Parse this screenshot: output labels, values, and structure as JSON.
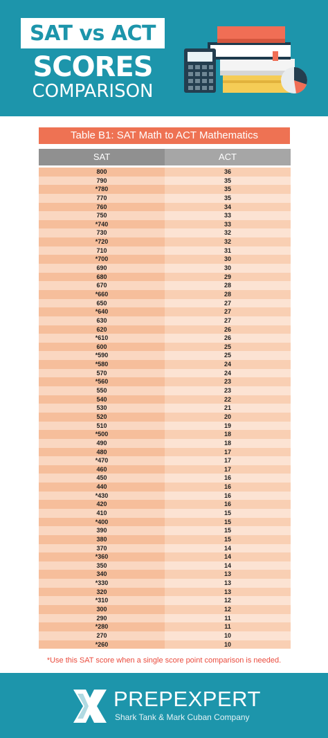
{
  "header": {
    "title_line1": "SAT vs ACT",
    "title_line2": "SCORES",
    "title_line3": "COMPARISON",
    "illustration_icons": [
      "books-stack-icon",
      "calculator-icon",
      "pie-chart-icon"
    ]
  },
  "table": {
    "caption": "Table B1: SAT Math to ACT Mathematics",
    "columns": [
      "SAT",
      "ACT"
    ],
    "rows": [
      [
        "800",
        "36"
      ],
      [
        "790",
        "35"
      ],
      [
        "*780",
        "35"
      ],
      [
        "770",
        "35"
      ],
      [
        "760",
        "34"
      ],
      [
        "750",
        "33"
      ],
      [
        "*740",
        "33"
      ],
      [
        "730",
        "32"
      ],
      [
        "*720",
        "32"
      ],
      [
        "710",
        "31"
      ],
      [
        "*700",
        "30"
      ],
      [
        "690",
        "30"
      ],
      [
        "680",
        "29"
      ],
      [
        "670",
        "28"
      ],
      [
        "*660",
        "28"
      ],
      [
        "650",
        "27"
      ],
      [
        "*640",
        "27"
      ],
      [
        "630",
        "27"
      ],
      [
        "620",
        "26"
      ],
      [
        "*610",
        "26"
      ],
      [
        "600",
        "25"
      ],
      [
        "*590",
        "25"
      ],
      [
        "*580",
        "24"
      ],
      [
        "570",
        "24"
      ],
      [
        "*560",
        "23"
      ],
      [
        "550",
        "23"
      ],
      [
        "540",
        "22"
      ],
      [
        "530",
        "21"
      ],
      [
        "520",
        "20"
      ],
      [
        "510",
        "19"
      ],
      [
        "*500",
        "18"
      ],
      [
        "490",
        "18"
      ],
      [
        "480",
        "17"
      ],
      [
        "*470",
        "17"
      ],
      [
        "460",
        "17"
      ],
      [
        "450",
        "16"
      ],
      [
        "440",
        "16"
      ],
      [
        "*430",
        "16"
      ],
      [
        "420",
        "16"
      ],
      [
        "410",
        "15"
      ],
      [
        "*400",
        "15"
      ],
      [
        "390",
        "15"
      ],
      [
        "380",
        "15"
      ],
      [
        "370",
        "14"
      ],
      [
        "*360",
        "14"
      ],
      [
        "350",
        "14"
      ],
      [
        "340",
        "13"
      ],
      [
        "*330",
        "13"
      ],
      [
        "320",
        "13"
      ],
      [
        "*310",
        "12"
      ],
      [
        "300",
        "12"
      ],
      [
        "290",
        "11"
      ],
      [
        "*280",
        "11"
      ],
      [
        "270",
        "10"
      ],
      [
        "*260",
        "10"
      ]
    ]
  },
  "footnote": "*Use this SAT score when a single score point comparison is needed.",
  "footer": {
    "brand": "PREPEXPERT",
    "tagline": "Shark Tank & Mark Cuban Company",
    "logo_icon": "prepexpert-logo-icon"
  },
  "colors": {
    "teal": "#1d95ab",
    "coral": "#ee7253",
    "red_note": "#ea4b3d",
    "peach_dark": "#f6be9b",
    "peach_light": "#fce3d3",
    "header_gray": "#909090"
  }
}
